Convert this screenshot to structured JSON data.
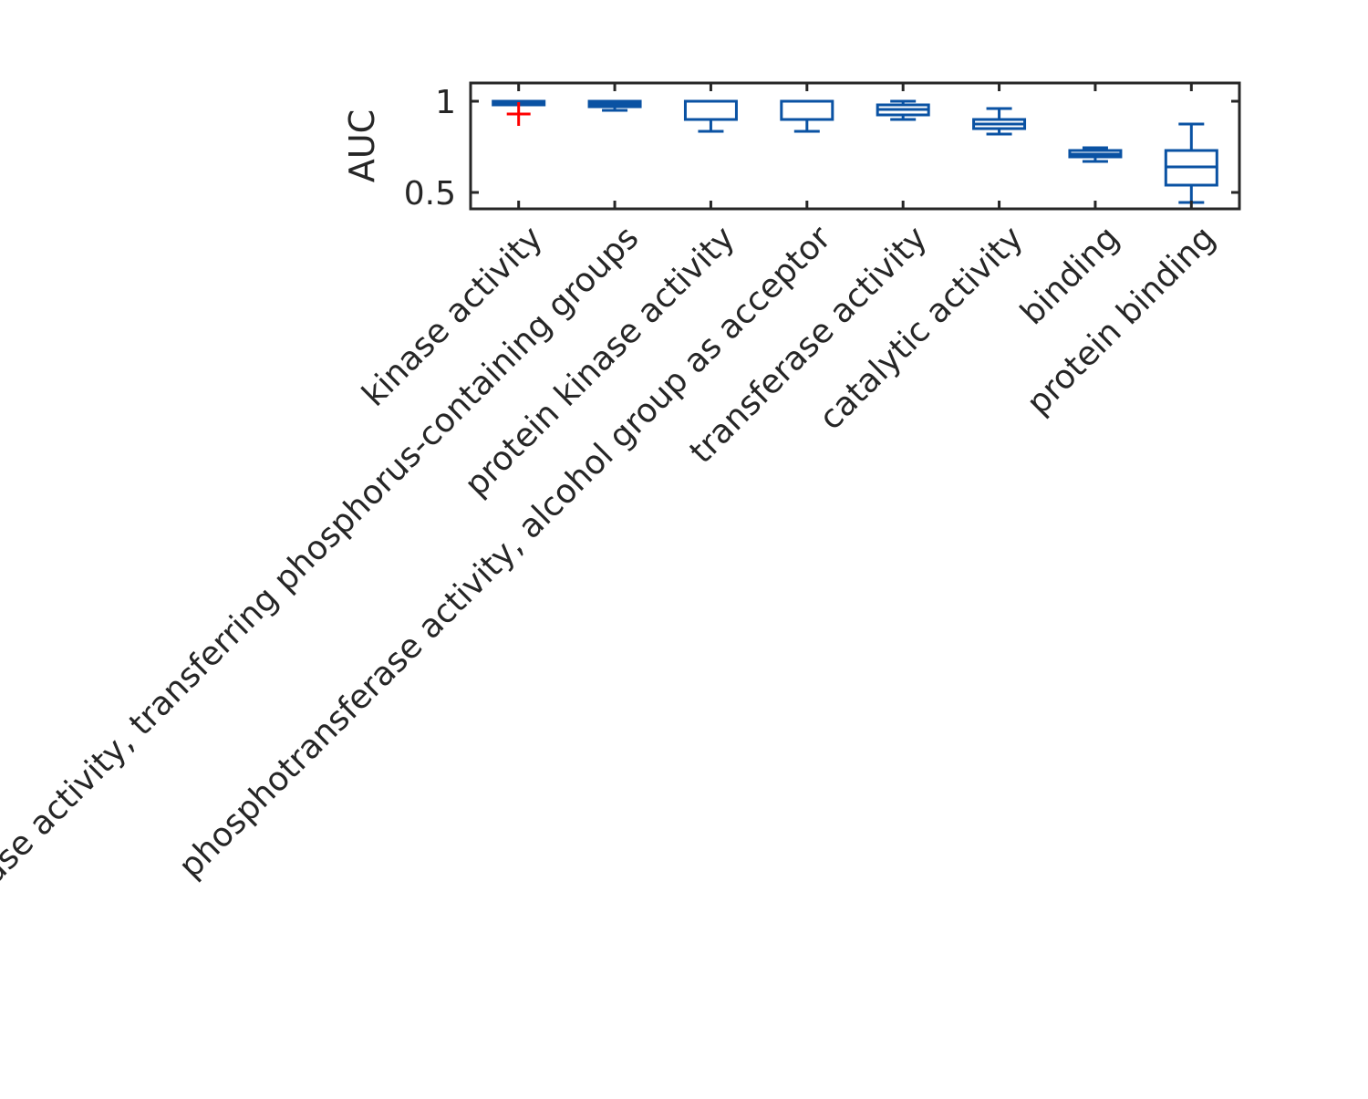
{
  "chart_data": {
    "type": "boxplot",
    "ylabel": "AUC",
    "xlabel": "",
    "title": "",
    "ylim": [
      0.41,
      1.1
    ],
    "yticks": [
      0.5,
      1
    ],
    "ytick_labels": [
      "0.5",
      "1"
    ],
    "grid": false,
    "legend": "none",
    "colors": {
      "box": "#0a52a3",
      "outlier": "#ff0000",
      "axis": "#262626"
    },
    "categories": [
      "kinase activity",
      "transferase activity, transferring phosphorus-containing groups",
      "protein kinase activity",
      "phosphotransferase activity, alcohol group as acceptor",
      "transferase activity",
      "catalytic activity",
      "binding",
      "protein binding"
    ],
    "boxes": [
      {
        "whisker_low": 0.98,
        "q1": 0.98,
        "median": 0.99,
        "q3": 1.0,
        "whisker_high": 1.0,
        "outliers": [
          0.93
        ]
      },
      {
        "whisker_low": 0.95,
        "q1": 0.97,
        "median": 0.985,
        "q3": 1.0,
        "whisker_high": 1.0,
        "outliers": []
      },
      {
        "whisker_low": 0.835,
        "q1": 0.9,
        "median": 1.0,
        "q3": 1.0,
        "whisker_high": 1.0,
        "outliers": []
      },
      {
        "whisker_low": 0.835,
        "q1": 0.9,
        "median": 1.0,
        "q3": 1.0,
        "whisker_high": 1.0,
        "outliers": []
      },
      {
        "whisker_low": 0.9,
        "q1": 0.925,
        "median": 0.955,
        "q3": 0.98,
        "whisker_high": 1.0,
        "outliers": []
      },
      {
        "whisker_low": 0.82,
        "q1": 0.85,
        "median": 0.875,
        "q3": 0.9,
        "whisker_high": 0.96,
        "outliers": []
      },
      {
        "whisker_low": 0.67,
        "q1": 0.695,
        "median": 0.71,
        "q3": 0.73,
        "whisker_high": 0.745,
        "outliers": []
      },
      {
        "whisker_low": 0.445,
        "q1": 0.54,
        "median": 0.64,
        "q3": 0.73,
        "whisker_high": 0.875,
        "outliers": []
      }
    ]
  }
}
